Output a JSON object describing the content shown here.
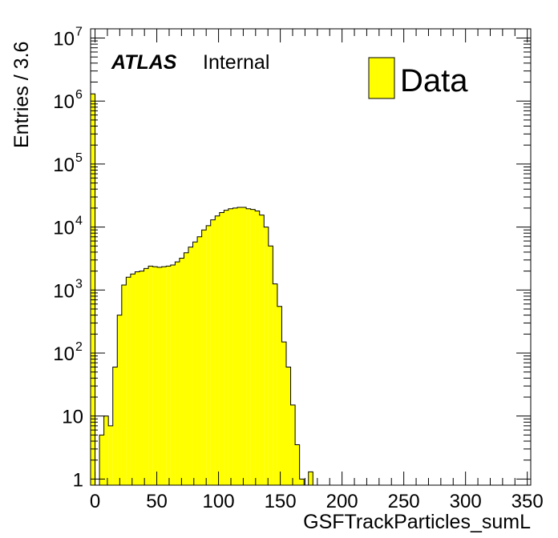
{
  "chart_data": {
    "type": "bar",
    "subtype": "histogram",
    "xlabel": "GSFTrackParticles_sumL",
    "ylabel": "Entries / 3.6",
    "xlim": [
      -3.6,
      352.8
    ],
    "ylim": [
      0.8,
      14000000
    ],
    "yscale": "log",
    "bin_width": 3.6,
    "x_ticks": [
      0,
      50,
      100,
      150,
      200,
      250,
      300,
      350
    ],
    "x_tick_labels": [
      "0",
      "50",
      "100",
      "150",
      "200",
      "250",
      "300",
      "350"
    ],
    "y_ticks": [
      {
        "value": 1,
        "label": "1",
        "exp": ""
      },
      {
        "value": 10,
        "label": "10",
        "exp": ""
      },
      {
        "value": 100,
        "label": "10",
        "exp": "2"
      },
      {
        "value": 1000,
        "label": "10",
        "exp": "3"
      },
      {
        "value": 10000,
        "label": "10",
        "exp": "4"
      },
      {
        "value": 100000,
        "label": "10",
        "exp": "5"
      },
      {
        "value": 1000000,
        "label": "10",
        "exp": "6"
      },
      {
        "value": 10000000,
        "label": "10",
        "exp": "7"
      }
    ],
    "series": [
      {
        "name": "Data",
        "color": "#ffff00",
        "bin_low_edges": [
          -3.6,
          0,
          3.6,
          7.2,
          10.8,
          14.4,
          18.0,
          21.6,
          25.2,
          28.8,
          32.4,
          36.0,
          39.6,
          43.2,
          46.8,
          50.4,
          54.0,
          57.6,
          61.2,
          64.8,
          68.4,
          72.0,
          75.6,
          79.2,
          82.8,
          86.4,
          90.0,
          93.6,
          97.2,
          100.8,
          104.4,
          108.0,
          111.6,
          115.2,
          118.8,
          122.4,
          126.0,
          129.6,
          133.2,
          136.8,
          140.4,
          144.0,
          147.6,
          151.2,
          154.8,
          158.4,
          162.0,
          165.6,
          169.2,
          172.8,
          176.4
        ],
        "values": [
          1300000,
          0,
          5,
          10,
          7,
          60,
          400,
          1200,
          1600,
          1800,
          1950,
          2000,
          2200,
          2400,
          2350,
          2300,
          2350,
          2400,
          2500,
          2800,
          3200,
          3900,
          4800,
          5800,
          7000,
          9000,
          10500,
          13000,
          15000,
          17000,
          18500,
          19500,
          20000,
          20500,
          20500,
          19500,
          19000,
          18000,
          15500,
          10000,
          5000,
          1250,
          550,
          150,
          60,
          15,
          3.5,
          1,
          0,
          1.3,
          0
        ]
      }
    ]
  },
  "legend": {
    "label": "Data",
    "color": "#ffff00"
  },
  "annotation": {
    "brand": "ATLAS",
    "status": "Internal"
  }
}
